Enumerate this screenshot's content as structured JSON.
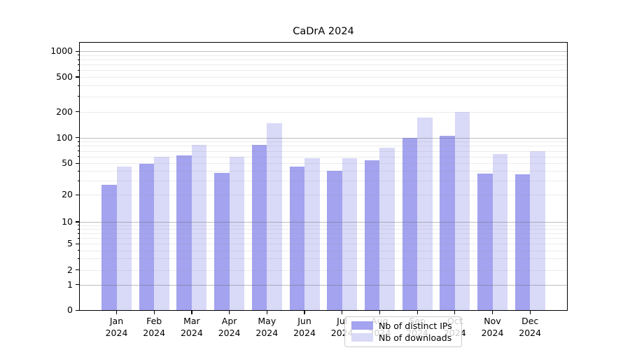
{
  "title": "CaDrA 2024",
  "y_axis": {
    "tick_labels": [
      "1000",
      "500",
      "200",
      "100",
      "50",
      "20",
      "10",
      "5",
      "2",
      "1",
      "0"
    ]
  },
  "x_axis": {
    "year": "2024",
    "months": [
      "Jan",
      "Feb",
      "Mar",
      "Apr",
      "May",
      "Jun",
      "Jul",
      "Aug",
      "Sep",
      "Oct",
      "Nov",
      "Dec"
    ]
  },
  "legend": {
    "items": [
      {
        "label": "Nb of distinct IPs",
        "color": "#a3a3ef"
      },
      {
        "label": "Nb of downloads",
        "color": "#d9d9f8"
      }
    ]
  },
  "chart_data": {
    "type": "bar",
    "title": "CaDrA 2024",
    "categories": [
      "Jan 2024",
      "Feb 2024",
      "Mar 2024",
      "Apr 2024",
      "May 2024",
      "Jun 2024",
      "Jul 2024",
      "Aug 2024",
      "Sep 2024",
      "Oct 2024",
      "Nov 2024",
      "Dec 2024"
    ],
    "series": [
      {
        "name": "Nb of distinct IPs",
        "color": "#a3a3ef",
        "values": [
          27,
          49,
          62,
          38,
          82,
          45,
          40,
          54,
          100,
          106,
          37,
          36
        ]
      },
      {
        "name": "Nb of downloads",
        "color": "#d9d9f8",
        "values": [
          45,
          60,
          82,
          60,
          147,
          57,
          57,
          76,
          170,
          198,
          64,
          70
        ]
      }
    ],
    "yscale": "symlog",
    "yticks": [
      0,
      1,
      2,
      5,
      10,
      20,
      50,
      100,
      200,
      500,
      1000
    ],
    "ylim": [
      0,
      1300
    ],
    "grid": true,
    "legend_position": "lower center"
  }
}
